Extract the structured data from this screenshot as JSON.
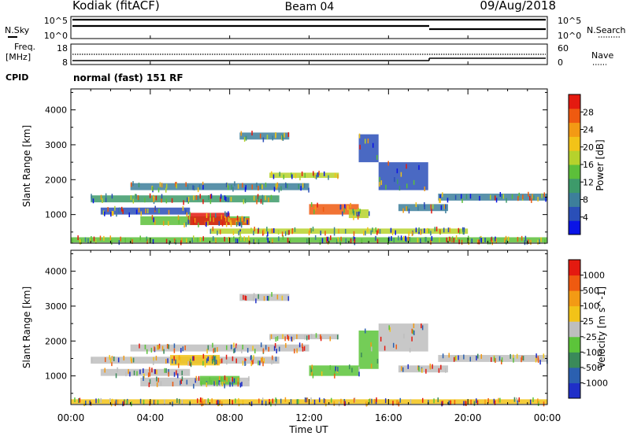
{
  "header": {
    "station": "Kodiak (fitACF)",
    "beam": "Beam 04",
    "date": "09/Aug/2018"
  },
  "status_panels": {
    "nsky_label": "N.Sky",
    "nsearch_label": "N.Search",
    "noise_ticks_left": [
      "10^5",
      "10^0"
    ],
    "noise_ticks_right": [
      "10^5",
      "10^0"
    ],
    "freq_label_line1": "Freq.",
    "freq_label_line2": "[MHz]",
    "freq_ticks": [
      "18",
      "8"
    ],
    "nave_label": "Nave",
    "nave_ticks": [
      "60",
      "0"
    ],
    "cpid_label": "CPID",
    "cpid_value": "normal (fast) 151 RF"
  },
  "chart_data": [
    {
      "type": "heatmap",
      "name": "power",
      "ylabel": "Slant Range [km]",
      "y_ticks": [
        1000,
        2000,
        3000,
        4000
      ],
      "ylim": [
        180,
        4600
      ],
      "colorbar_label": "Power [dB]",
      "colorbar_ticks": [
        "4",
        "8",
        "12",
        "16",
        "20",
        "24",
        "28"
      ],
      "colorbar_colors": [
        "#0a14e6",
        "#2a4fb8",
        "#3d7f9b",
        "#3d9a6a",
        "#5cbf3a",
        "#b6d22c",
        "#f2c318",
        "#f39a14",
        "#ef5a10",
        "#e41a10"
      ],
      "regions": [
        {
          "t0": 1.0,
          "t1": 10.5,
          "r0": 1350,
          "r1": 1550,
          "level": "#3d9a6a"
        },
        {
          "t0": 1.5,
          "t1": 6.0,
          "r0": 1000,
          "r1": 1200,
          "level": "#2a4fb8"
        },
        {
          "t0": 3.5,
          "t1": 9.0,
          "r0": 700,
          "r1": 950,
          "level": "#5cbf3a"
        },
        {
          "t0": 6.0,
          "t1": 8.0,
          "r0": 700,
          "r1": 1050,
          "level": "#e41a10"
        },
        {
          "t0": 8.0,
          "t1": 9.0,
          "r0": 700,
          "r1": 900,
          "level": "#ef5a10"
        },
        {
          "t0": 3.0,
          "t1": 12.0,
          "r0": 1700,
          "r1": 1900,
          "level": "#3d7f9b"
        },
        {
          "t0": 10.0,
          "t1": 13.5,
          "r0": 2050,
          "r1": 2200,
          "level": "#b6d22c"
        },
        {
          "t0": 12.0,
          "t1": 14.5,
          "r0": 1000,
          "r1": 1300,
          "level": "#ef5a10"
        },
        {
          "t0": 14.0,
          "t1": 15.0,
          "r0": 900,
          "r1": 1150,
          "level": "#b6d22c"
        },
        {
          "t0": 8.5,
          "t1": 11.0,
          "r0": 3150,
          "r1": 3350,
          "level": "#3d7f9b"
        },
        {
          "t0": 14.5,
          "t1": 15.5,
          "r0": 2500,
          "r1": 3300,
          "level": "#2a4fb8"
        },
        {
          "t0": 15.5,
          "t1": 18.0,
          "r0": 1700,
          "r1": 2500,
          "level": "#2a4fb8"
        },
        {
          "t0": 16.5,
          "t1": 19.0,
          "r0": 1100,
          "r1": 1300,
          "level": "#3d7f9b"
        },
        {
          "t0": 18.5,
          "t1": 24.0,
          "r0": 1400,
          "r1": 1600,
          "level": "#3d7f9b"
        },
        {
          "t0": 0.0,
          "t1": 24.0,
          "r0": 200,
          "r1": 350,
          "level": "#5cbf3a"
        },
        {
          "t0": 7.0,
          "t1": 20.0,
          "r0": 450,
          "r1": 600,
          "level": "#b6d22c"
        }
      ]
    },
    {
      "type": "heatmap",
      "name": "velocity",
      "ylabel": "Slant Range [km]",
      "y_ticks": [
        1000,
        2000,
        3000,
        4000
      ],
      "ylim": [
        180,
        4600
      ],
      "colorbar_label": "Velocity [m s^-1]",
      "colorbar_ticks": [
        "1000",
        "500",
        "100",
        "25",
        "-25",
        "-100",
        "-500",
        "-1000"
      ],
      "colorbar_colors": [
        "#1f2fc8",
        "#2b60b0",
        "#3a8a5a",
        "#5cc43a",
        "#bebebe",
        "#f2c318",
        "#f39a14",
        "#ef5a10",
        "#e41a10"
      ],
      "regions": [
        {
          "t0": 1.0,
          "t1": 10.5,
          "r0": 1350,
          "r1": 1550,
          "level": "#bebebe"
        },
        {
          "t0": 1.5,
          "t1": 6.0,
          "r0": 1000,
          "r1": 1200,
          "level": "#bebebe"
        },
        {
          "t0": 3.5,
          "t1": 9.0,
          "r0": 700,
          "r1": 950,
          "level": "#bebebe"
        },
        {
          "t0": 6.5,
          "t1": 8.5,
          "r0": 750,
          "r1": 1000,
          "level": "#5cc43a"
        },
        {
          "t0": 3.0,
          "t1": 12.0,
          "r0": 1700,
          "r1": 1900,
          "level": "#bebebe"
        },
        {
          "t0": 10.0,
          "t1": 13.5,
          "r0": 2050,
          "r1": 2200,
          "level": "#bebebe"
        },
        {
          "t0": 12.0,
          "t1": 14.5,
          "r0": 1000,
          "r1": 1300,
          "level": "#5cc43a"
        },
        {
          "t0": 14.5,
          "t1": 15.5,
          "r0": 1200,
          "r1": 2300,
          "level": "#5cc43a"
        },
        {
          "t0": 15.5,
          "t1": 18.0,
          "r0": 1700,
          "r1": 2500,
          "level": "#bebebe"
        },
        {
          "t0": 16.5,
          "t1": 19.0,
          "r0": 1100,
          "r1": 1300,
          "level": "#bebebe"
        },
        {
          "t0": 18.5,
          "t1": 24.0,
          "r0": 1400,
          "r1": 1600,
          "level": "#bebebe"
        },
        {
          "t0": 8.5,
          "t1": 11.0,
          "r0": 3150,
          "r1": 3350,
          "level": "#bebebe"
        },
        {
          "t0": 0.0,
          "t1": 24.0,
          "r0": 200,
          "r1": 330,
          "level": "#f2c318"
        },
        {
          "t0": 5.0,
          "t1": 7.5,
          "r0": 1300,
          "r1": 1600,
          "level": "#f2c318"
        }
      ]
    }
  ],
  "time_axis": {
    "xlabel": "Time UT",
    "ticks": [
      "00:00",
      "04:00",
      "08:00",
      "12:00",
      "16:00",
      "20:00",
      "00:00"
    ]
  }
}
